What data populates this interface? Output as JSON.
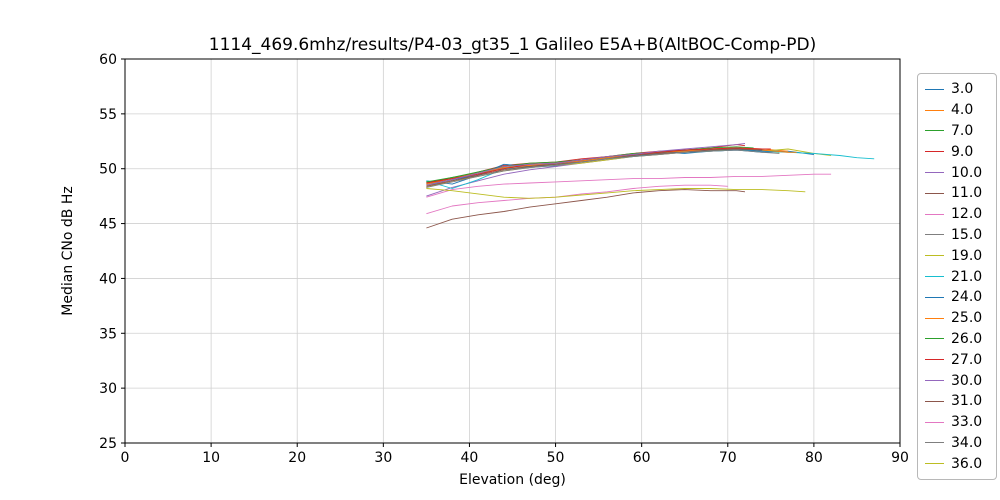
{
  "chart_data": {
    "type": "line",
    "title": "1114_469.6mhz/results/P4-03_gt35_1 Galileo E5A+B(AltBOC-Comp-PD)",
    "xlabel": "Elevation (deg)",
    "ylabel": "Median CNo dB Hz",
    "xlim": [
      0,
      90
    ],
    "ylim": [
      25,
      60
    ],
    "x_ticks": [
      0,
      10,
      20,
      30,
      40,
      50,
      60,
      70,
      80,
      90
    ],
    "y_ticks": [
      25,
      30,
      35,
      40,
      45,
      50,
      55,
      60
    ],
    "grid": true,
    "grid_color": "#d0d0d0",
    "axis_color": "#000000",
    "legend_position": "right",
    "series": [
      {
        "label": "3.0",
        "color": "#1f77b4",
        "x": [
          35,
          38,
          41,
          44,
          47,
          50,
          53,
          56,
          59,
          62,
          65,
          68,
          71,
          74,
          77,
          80
        ],
        "y": [
          48.9,
          48.6,
          49.4,
          50.1,
          50.3,
          50.2,
          50.7,
          51.0,
          51.2,
          51.5,
          51.4,
          51.6,
          51.7,
          51.5,
          51.6,
          51.3
        ]
      },
      {
        "label": "4.0",
        "color": "#ff7f0e",
        "x": [
          35,
          38,
          41,
          44,
          47,
          50,
          53,
          56,
          59,
          62,
          65,
          68,
          71,
          74,
          77
        ],
        "y": [
          48.4,
          49.0,
          49.5,
          50.0,
          50.3,
          50.4,
          50.6,
          50.9,
          51.2,
          51.4,
          51.6,
          51.8,
          51.9,
          51.8,
          51.6
        ]
      },
      {
        "label": "7.0",
        "color": "#2ca02c",
        "x": [
          35,
          38,
          41,
          44,
          47,
          50,
          53,
          56,
          59,
          62,
          65,
          68,
          71,
          74,
          76
        ],
        "y": [
          48.7,
          49.2,
          49.6,
          50.2,
          50.4,
          50.5,
          50.8,
          51.0,
          51.3,
          51.5,
          51.6,
          51.7,
          51.9,
          51.7,
          51.5
        ]
      },
      {
        "label": "9.0",
        "color": "#d62728",
        "x": [
          35,
          38,
          41,
          44,
          47,
          50,
          53,
          56,
          59,
          62,
          65,
          68,
          71,
          72
        ],
        "y": [
          48.8,
          49.1,
          49.7,
          50.3,
          50.5,
          50.6,
          50.9,
          51.1,
          51.4,
          51.6,
          51.7,
          51.9,
          52.2,
          52.1
        ]
      },
      {
        "label": "10.0",
        "color": "#9467bd",
        "x": [
          35,
          38,
          41,
          44,
          47,
          50,
          53,
          56,
          59,
          62,
          65,
          68,
          71,
          74,
          75
        ],
        "y": [
          47.5,
          48.3,
          48.9,
          49.5,
          49.9,
          50.2,
          50.5,
          50.8,
          51.1,
          51.3,
          51.5,
          51.6,
          51.7,
          51.6,
          51.6
        ]
      },
      {
        "label": "11.0",
        "color": "#8c564b",
        "x": [
          35,
          38,
          41,
          44,
          47,
          50,
          53,
          56,
          59,
          62,
          65,
          68,
          71,
          72
        ],
        "y": [
          44.6,
          45.4,
          45.8,
          46.1,
          46.5,
          46.8,
          47.1,
          47.4,
          47.8,
          48.0,
          48.1,
          48.0,
          48.0,
          47.9
        ]
      },
      {
        "label": "12.0",
        "color": "#e377c2",
        "x": [
          35,
          38,
          41,
          44,
          47,
          50,
          53,
          56,
          59,
          62,
          65,
          68,
          71,
          74,
          77,
          80,
          82
        ],
        "y": [
          47.4,
          48.1,
          48.4,
          48.6,
          48.7,
          48.8,
          48.9,
          49.0,
          49.1,
          49.1,
          49.2,
          49.2,
          49.3,
          49.3,
          49.4,
          49.5,
          49.5
        ]
      },
      {
        "label": "15.0",
        "color": "#7f7f7f",
        "x": [
          35,
          38,
          41,
          44,
          47,
          50,
          53,
          56,
          59,
          62,
          65,
          68,
          71,
          74
        ],
        "y": [
          48.6,
          49.0,
          49.5,
          50.1,
          50.2,
          50.4,
          50.7,
          51.0,
          51.3,
          51.4,
          51.6,
          51.7,
          51.8,
          51.8
        ]
      },
      {
        "label": "19.0",
        "color": "#bcbd22",
        "x": [
          35,
          38,
          41,
          44,
          47,
          50,
          53,
          56,
          59,
          62,
          65,
          68,
          71,
          74,
          77,
          80,
          82
        ],
        "y": [
          48.3,
          48.9,
          49.3,
          49.8,
          50.1,
          50.3,
          50.5,
          50.8,
          51.1,
          51.3,
          51.5,
          51.6,
          51.8,
          51.6,
          51.8,
          51.4,
          51.2
        ]
      },
      {
        "label": "21.0",
        "color": "#17becf",
        "x": [
          35,
          38,
          41,
          44,
          47,
          50,
          53,
          56,
          59,
          62,
          65,
          68,
          71,
          74,
          77,
          80,
          83,
          85,
          87
        ],
        "y": [
          48.9,
          48.2,
          49.0,
          50.0,
          50.1,
          50.3,
          50.6,
          50.9,
          51.1,
          51.4,
          51.5,
          51.6,
          51.7,
          51.6,
          51.5,
          51.4,
          51.2,
          51.0,
          50.9
        ]
      },
      {
        "label": "24.0",
        "color": "#1f77b4",
        "x": [
          35,
          38,
          41,
          44,
          47,
          50,
          53,
          56,
          59,
          62,
          65,
          68,
          71,
          74,
          76
        ],
        "y": [
          48.5,
          49.0,
          49.4,
          50.4,
          50.2,
          50.5,
          50.7,
          51.0,
          51.2,
          51.4,
          51.6,
          51.7,
          51.8,
          51.6,
          51.6
        ]
      },
      {
        "label": "25.0",
        "color": "#ff7f0e",
        "x": [
          35,
          38,
          41,
          44,
          47,
          50,
          53,
          56,
          59,
          62,
          65,
          68,
          71,
          74,
          77,
          78
        ],
        "y": [
          48.6,
          49.1,
          49.6,
          50.1,
          50.3,
          50.5,
          50.7,
          51.0,
          51.3,
          51.5,
          51.6,
          51.8,
          51.9,
          51.7,
          51.5,
          51.5
        ]
      },
      {
        "label": "26.0",
        "color": "#2ca02c",
        "x": [
          35,
          38,
          41,
          44,
          47,
          50,
          53,
          56,
          59,
          62,
          65,
          68,
          71,
          73
        ],
        "y": [
          48.8,
          49.2,
          49.7,
          50.2,
          50.5,
          50.6,
          50.8,
          51.1,
          51.4,
          51.5,
          51.7,
          51.9,
          52.0,
          51.9
        ]
      },
      {
        "label": "27.0",
        "color": "#d62728",
        "x": [
          35,
          38,
          41,
          44,
          47,
          50,
          53,
          56,
          59,
          62,
          65,
          68,
          71,
          74,
          75
        ],
        "y": [
          48.7,
          49.1,
          49.5,
          50.0,
          50.4,
          50.5,
          50.8,
          51.1,
          51.3,
          51.5,
          51.7,
          51.8,
          51.9,
          51.8,
          51.8
        ]
      },
      {
        "label": "30.0",
        "color": "#9467bd",
        "x": [
          35,
          38,
          41,
          44,
          47,
          50,
          53,
          56,
          59,
          62,
          65,
          68,
          71,
          72
        ],
        "y": [
          48.5,
          49.0,
          49.6,
          50.2,
          50.4,
          50.5,
          50.8,
          51.1,
          51.3,
          51.6,
          51.8,
          52.0,
          52.2,
          52.3
        ]
      },
      {
        "label": "31.0",
        "color": "#8c564b",
        "x": [
          35,
          38,
          41,
          44,
          47,
          50,
          53,
          56,
          59,
          62,
          65,
          68,
          71,
          74
        ],
        "y": [
          48.4,
          48.9,
          49.4,
          49.9,
          50.2,
          50.4,
          50.6,
          50.9,
          51.2,
          51.4,
          51.5,
          51.7,
          51.8,
          51.7
        ]
      },
      {
        "label": "33.0",
        "color": "#e377c2",
        "x": [
          35,
          38,
          41,
          44,
          47,
          50,
          53,
          56,
          59,
          62,
          65,
          68,
          70
        ],
        "y": [
          45.9,
          46.6,
          46.9,
          47.1,
          47.3,
          47.4,
          47.7,
          47.9,
          48.2,
          48.4,
          48.5,
          48.5,
          48.4
        ]
      },
      {
        "label": "34.0",
        "color": "#7f7f7f",
        "x": [
          35,
          38,
          41,
          44,
          47,
          50,
          53,
          56,
          59,
          62,
          65,
          68,
          71,
          74,
          76
        ],
        "y": [
          48.3,
          48.8,
          49.3,
          49.8,
          50.1,
          50.3,
          50.6,
          50.9,
          51.1,
          51.3,
          51.5,
          51.6,
          51.7,
          51.5,
          51.4
        ]
      },
      {
        "label": "36.0",
        "color": "#bcbd22",
        "x": [
          35,
          38,
          41,
          44,
          47,
          50,
          53,
          56,
          59,
          62,
          65,
          68,
          71,
          74,
          77,
          79
        ],
        "y": [
          48.2,
          48.0,
          47.7,
          47.4,
          47.3,
          47.4,
          47.6,
          47.8,
          48.0,
          48.1,
          48.2,
          48.2,
          48.1,
          48.1,
          48.0,
          47.9
        ]
      }
    ]
  }
}
